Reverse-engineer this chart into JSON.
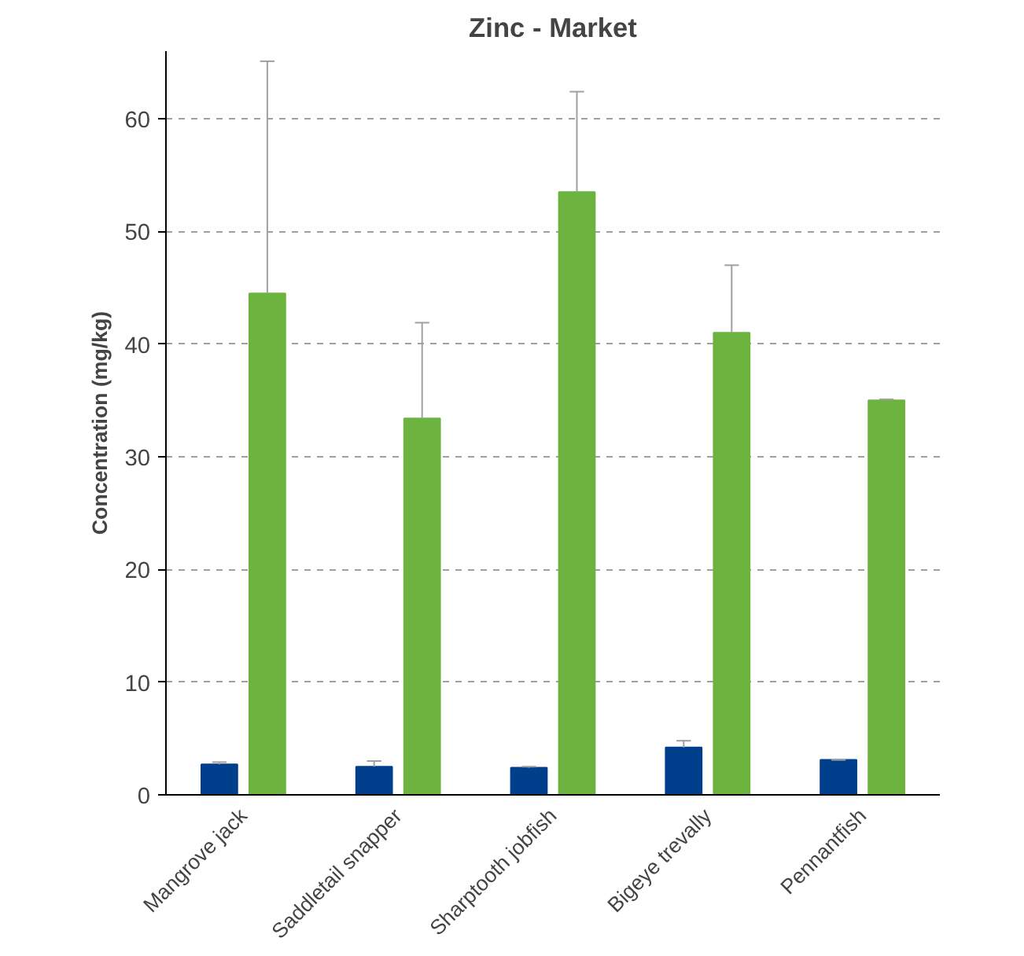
{
  "chart_data": {
    "type": "bar",
    "title": "Zinc - Market",
    "ylabel": "Concentration (mg/kg)",
    "categories": [
      "Mangrove jack",
      "Saddletail snapper",
      "Sharptooth jobfish",
      "Bigeye trevally",
      "Pennantfish"
    ],
    "series": [
      {
        "color": "#003f8c",
        "values": [
          2.7,
          2.5,
          2.4,
          4.2,
          3.1
        ],
        "errors": [
          [
            2.7,
            2.9
          ],
          [
            2.5,
            3.0
          ],
          [
            2.4,
            2.5
          ],
          [
            4.2,
            4.8
          ],
          [
            3.1,
            3.1
          ]
        ]
      },
      {
        "color": "#6db33f",
        "values": [
          44.5,
          33.4,
          53.5,
          41.0,
          35.0
        ],
        "errors": [
          [
            44.5,
            65.1
          ],
          [
            33.4,
            41.9
          ],
          [
            53.5,
            62.4
          ],
          [
            41.0,
            47.0
          ],
          [
            35.0,
            35.1
          ]
        ]
      }
    ],
    "ylim": [
      0,
      66
    ],
    "yticks": [
      0,
      10,
      20,
      30,
      40,
      50,
      60
    ],
    "grid": "y"
  }
}
